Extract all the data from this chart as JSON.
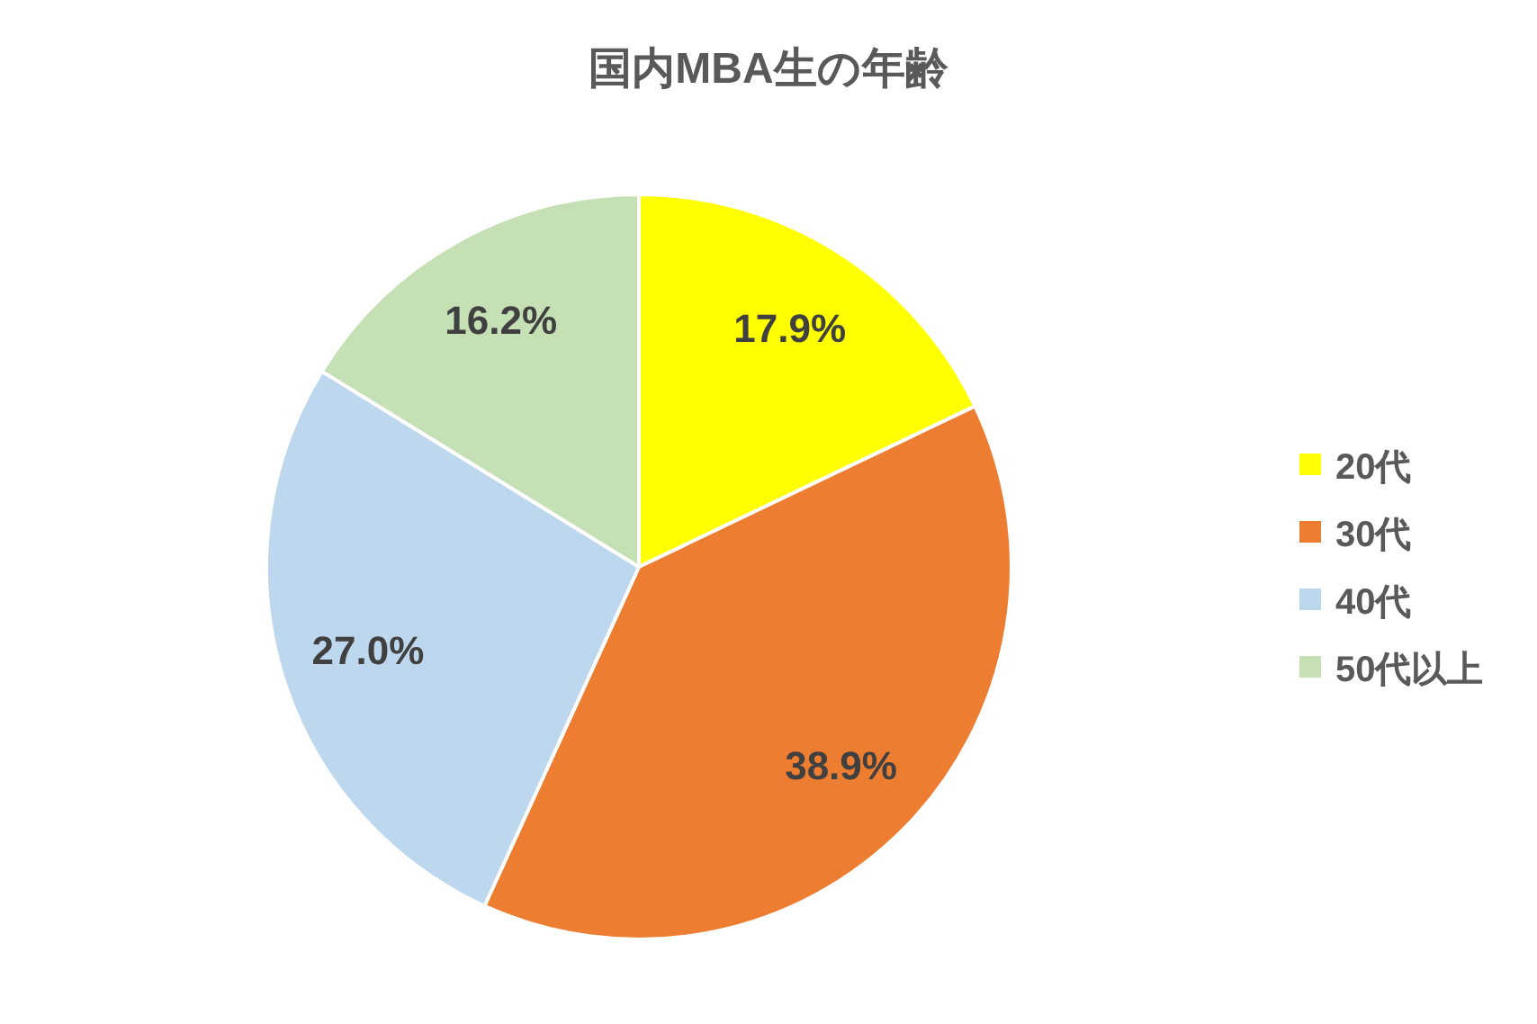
{
  "chart_data": {
    "type": "pie",
    "title": "国内MBA生の年齢",
    "categories": [
      "20代",
      "30代",
      "40代",
      "50代以上"
    ],
    "values": [
      17.9,
      38.9,
      27.0,
      16.2
    ],
    "value_labels": [
      "17.9%",
      "38.9%",
      "27.0%",
      "16.2%"
    ],
    "colors": [
      "#ffff00",
      "#ed7d31",
      "#bdd7ee",
      "#c5e0b4"
    ],
    "legend": "right"
  }
}
